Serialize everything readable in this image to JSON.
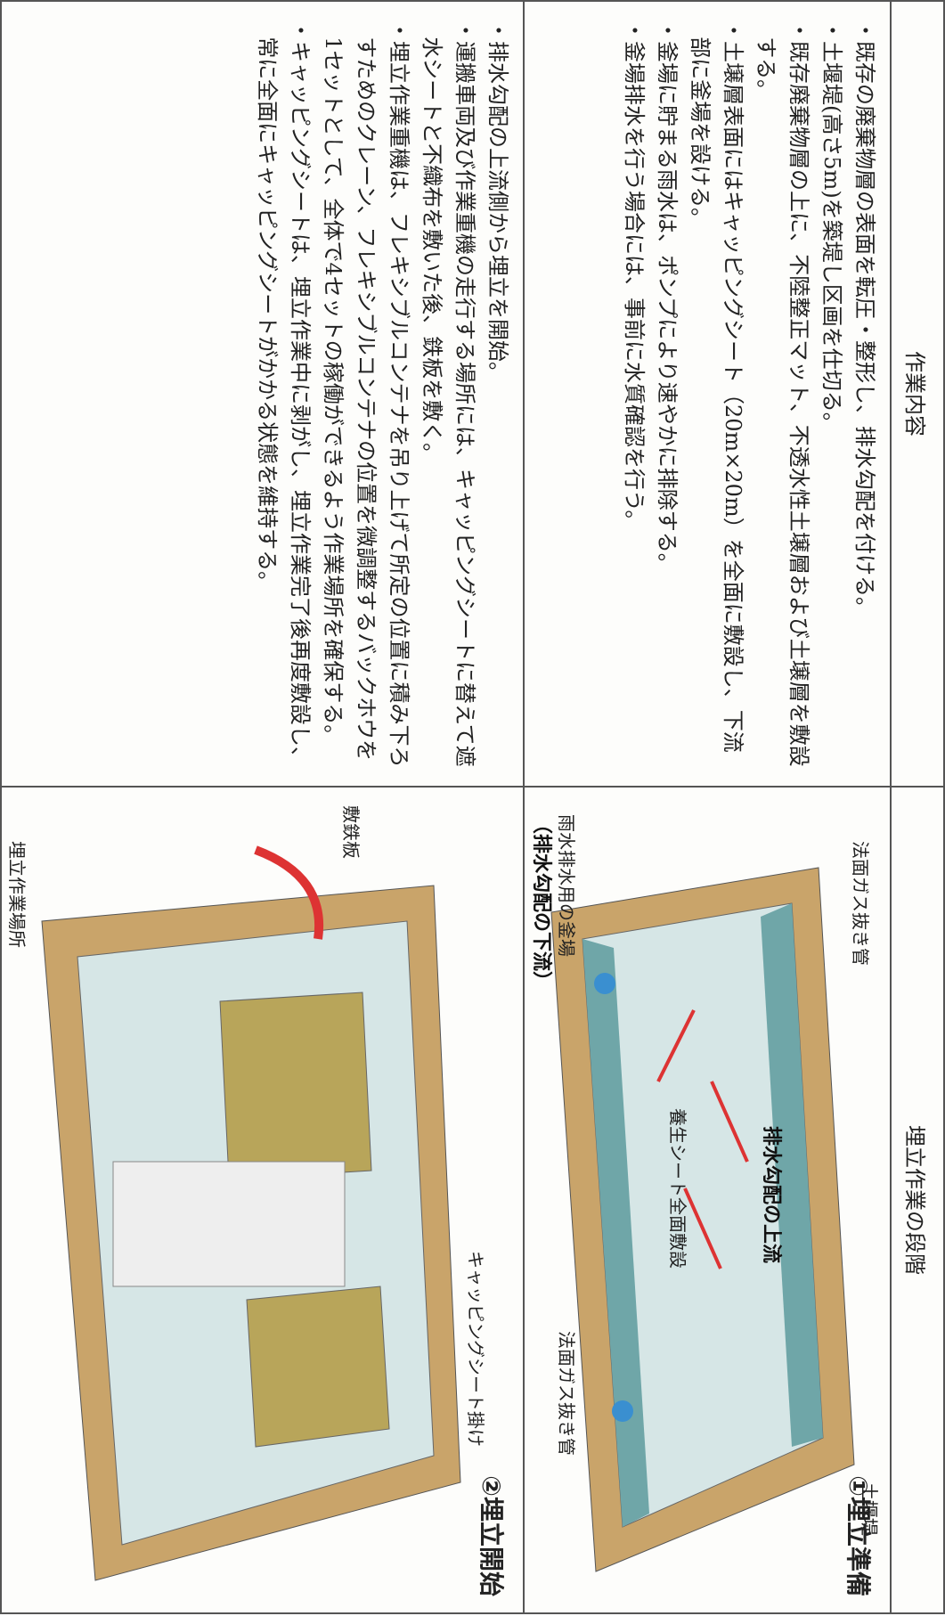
{
  "header": {
    "content": "作業内容",
    "stage": "埋立作業の段階"
  },
  "rows": [
    {
      "stage": "①埋立準備",
      "content": [
        "・既存の廃棄物層の表面を転圧・整形し、排水勾配を付ける。",
        "・土堰堤(高さ5m)を築堤し区画を仕切る。",
        "・既存廃棄物層の上に、不陸整正マット、不透水性土壌層および土壌層を敷設する。",
        "・土壌層表面にはキャッピングシート（20m×20m）を全面に敷設し、下流部に釜場を設ける。",
        "・釜場に貯まる雨水は、ポンプにより速やかに排除する。",
        "・釜場排水を行う場合には、事前に水質確認を行う。"
      ],
      "labels": [
        "土堰堤",
        "法面ガス抜き管",
        "排水勾配の上流",
        "養生シート全面敷設",
        "法面ガス抜き管",
        "雨水排水用の釜場",
        "（排水勾配の下流）"
      ]
    },
    {
      "stage": "②埋立開始",
      "content": [
        "・排水勾配の上流側から埋立を開始。",
        "・運搬車両及び作業重機の走行する場所には、キャッピングシートに替えて遮水シートと不織布を敷いた後、鉄板を敷く。",
        "・埋立作業重機は、フレキシブルコンテナを吊り上げて所定の位置に積み下ろすためのクレーン、フレキシブルコンテナの位置を微調整するバックホウを1セットとして、全体で4セットの稼働ができるよう作業場所を確保する。",
        "・キャッピングシートは、埋立作業中に剥がし、埋立作業完了後再度敷設し、常に全面にキャッピングシートがかかる状態を維持する。"
      ],
      "labels": [
        "キャッピングシート掛け",
        "埋立作業場所",
        "敷鉄板"
      ]
    }
  ]
}
